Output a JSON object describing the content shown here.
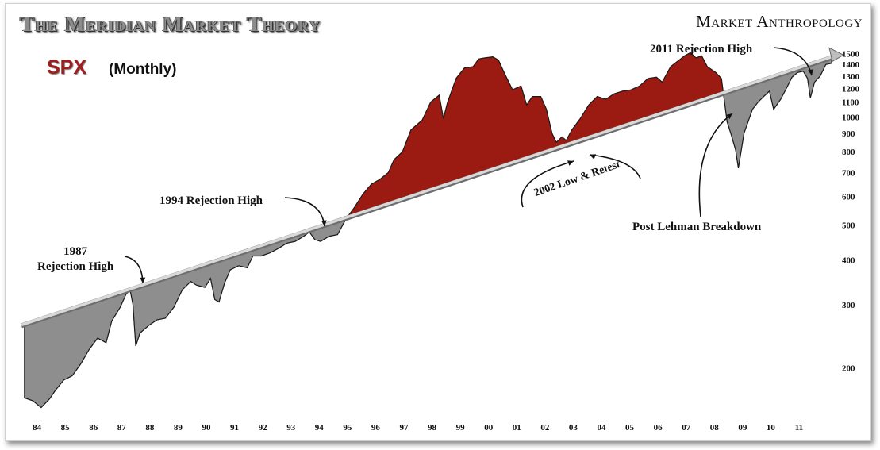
{
  "title": "The Meridian Market Theory",
  "brand": "Market Anthropology",
  "ticker": "SPX",
  "frequency": "(Monthly)",
  "colors": {
    "above_trend": "#9b1b12",
    "below_trend": "#8e8e8e",
    "trendline": "#d9d9d9",
    "ticker": "#a01d1d"
  },
  "annotations": {
    "rej_1987_line1": "1987",
    "rej_1987_line2": "Rejection High",
    "rej_1994": "1994 Rejection High",
    "rej_2011": "2011 Rejection High",
    "low_2002": "2002 Low & Retest",
    "lehman": "Post Lehman Breakdown"
  },
  "chart_data": {
    "type": "area",
    "yscale": "log",
    "ylim": [
      150,
      1600
    ],
    "xlim": [
      1983.8,
      2012.7
    ],
    "x_tick_labels": [
      "84",
      "85",
      "86",
      "87",
      "88",
      "89",
      "90",
      "91",
      "92",
      "93",
      "94",
      "95",
      "96",
      "97",
      "98",
      "99",
      "00",
      "01",
      "02",
      "03",
      "04",
      "05",
      "06",
      "07",
      "08",
      "09",
      "10",
      "11"
    ],
    "x_tick_years": [
      1984,
      1985,
      1986,
      1987,
      1988,
      1989,
      1990,
      1991,
      1992,
      1993,
      1994,
      1995,
      1996,
      1997,
      1998,
      1999,
      2000,
      2001,
      2002,
      2003,
      2004,
      2005,
      2006,
      2007,
      2008,
      2009,
      2010,
      2011
    ],
    "y_ticks": [
      200,
      300,
      400,
      500,
      600,
      700,
      800,
      900,
      1000,
      1100,
      1200,
      1300,
      1400,
      1500
    ],
    "trendline": {
      "x": [
        1983.8,
        2012.7
      ],
      "y": [
        262,
        1480
      ]
    },
    "series": [
      {
        "x": [
          1983.9,
          1984.2,
          1984.5,
          1984.8,
          1985.0,
          1985.3,
          1985.6,
          1985.9,
          1986.2,
          1986.5,
          1986.8,
          1987.0,
          1987.3,
          1987.5,
          1987.65,
          1987.75,
          1987.85,
          1988.0,
          1988.3,
          1988.6,
          1988.9,
          1989.2,
          1989.5,
          1989.8,
          1990.0,
          1990.3,
          1990.5,
          1990.65,
          1990.8,
          1991.0,
          1991.2,
          1991.5,
          1991.8,
          1992.0,
          1992.3,
          1992.6,
          1992.9,
          1993.2,
          1993.5,
          1993.8,
          1994.0,
          1994.2,
          1994.4,
          1994.7,
          1995.0,
          1995.3,
          1995.6,
          1995.9,
          1996.2,
          1996.5,
          1996.8,
          1997.0,
          1997.3,
          1997.6,
          1997.8,
          1998.0,
          1998.3,
          1998.6,
          1998.75,
          1998.9,
          1999.2,
          1999.5,
          1999.8,
          2000.0,
          2000.2,
          2000.5,
          2000.7,
          2000.9,
          2001.2,
          2001.5,
          2001.7,
          2001.9,
          2002.2,
          2002.4,
          2002.6,
          2002.75,
          2002.95,
          2003.1,
          2003.3,
          2003.6,
          2003.9,
          2004.2,
          2004.5,
          2004.8,
          2005.1,
          2005.4,
          2005.7,
          2006.0,
          2006.3,
          2006.5,
          2006.8,
          2007.0,
          2007.3,
          2007.5,
          2007.7,
          2007.9,
          2008.1,
          2008.4,
          2008.6,
          2008.8,
          2008.95,
          2009.1,
          2009.2,
          2009.4,
          2009.7,
          2009.9,
          2010.1,
          2010.3,
          2010.45,
          2010.7,
          2010.9,
          2011.1,
          2011.3,
          2011.5,
          2011.65,
          2011.75,
          2011.9,
          2012.1,
          2012.3,
          2012.5
        ],
        "y": [
          165,
          162,
          155,
          164,
          173,
          185,
          190,
          205,
          225,
          242,
          235,
          270,
          295,
          320,
          330,
          300,
          230,
          250,
          262,
          272,
          275,
          295,
          330,
          348,
          340,
          335,
          355,
          310,
          305,
          345,
          375,
          385,
          380,
          410,
          410,
          418,
          430,
          445,
          450,
          465,
          478,
          455,
          450,
          465,
          470,
          520,
          560,
          610,
          650,
          670,
          700,
          760,
          800,
          920,
          950,
          980,
          1100,
          1150,
          990,
          1100,
          1280,
          1370,
          1380,
          1450,
          1460,
          1470,
          1440,
          1330,
          1190,
          1220,
          1080,
          1140,
          1140,
          1050,
          900,
          850,
          880,
          860,
          920,
          990,
          1080,
          1140,
          1120,
          1160,
          1180,
          1190,
          1220,
          1280,
          1290,
          1250,
          1380,
          1420,
          1480,
          1510,
          1460,
          1480,
          1380,
          1330,
          1280,
          970,
          890,
          810,
          720,
          900,
          1050,
          1100,
          1140,
          1180,
          1050,
          1120,
          1200,
          1290,
          1330,
          1340,
          1280,
          1130,
          1250,
          1300,
          1400,
          1410
        ]
      }
    ]
  }
}
